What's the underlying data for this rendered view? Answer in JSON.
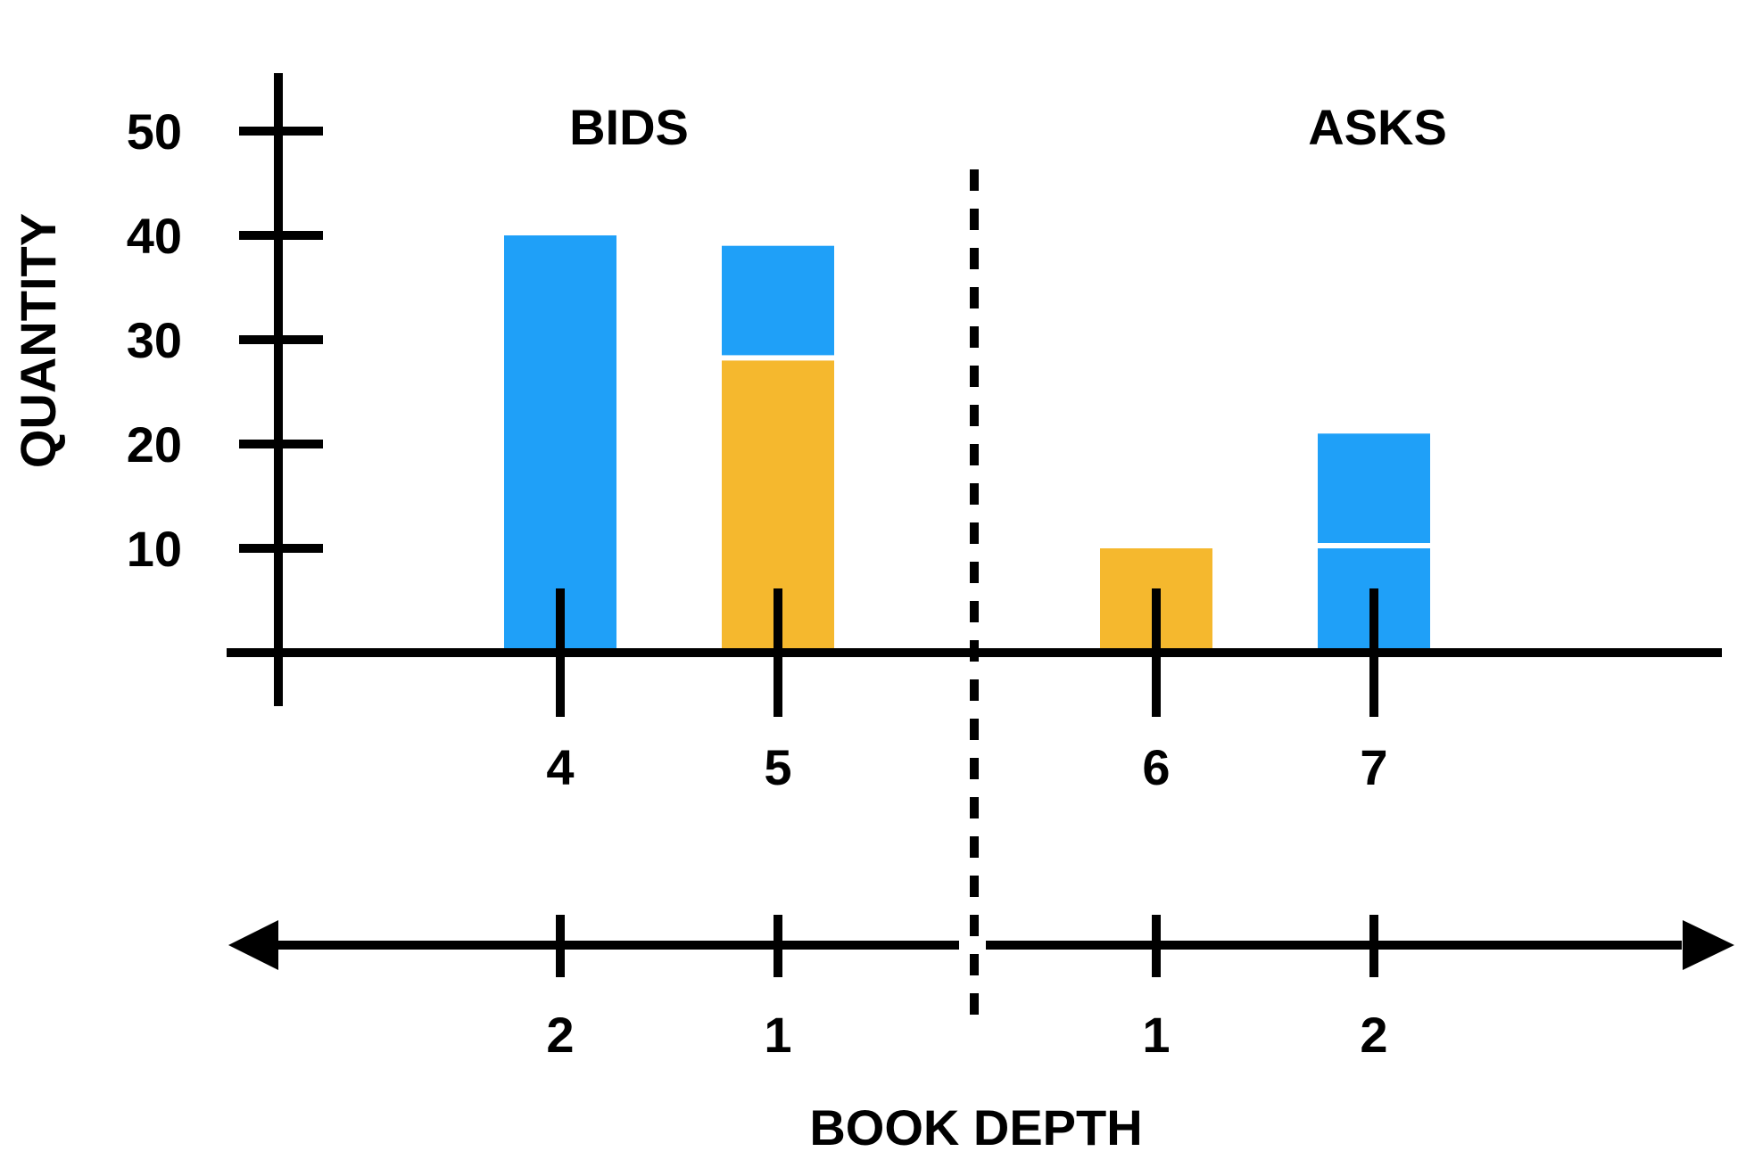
{
  "colors": {
    "blue": "#1fa0f8",
    "orange": "#f5b82e",
    "axis": "#000000"
  },
  "chart_data": {
    "type": "bar",
    "stacked": true,
    "ylabel": "QUANTITY",
    "xlabel": "BOOK DEPTH",
    "ylim": [
      0,
      50
    ],
    "yticks": [
      10,
      20,
      30,
      40,
      50
    ],
    "side_labels": {
      "left": "BIDS",
      "right": "ASKS"
    },
    "prices": [
      4,
      5,
      6,
      7
    ],
    "depths": [
      2,
      1,
      1,
      2
    ],
    "stacks": [
      {
        "price": 4,
        "segments": [
          {
            "value": 40,
            "color": "blue"
          }
        ]
      },
      {
        "price": 5,
        "segments": [
          {
            "value": 28,
            "color": "orange"
          },
          {
            "value": 11,
            "color": "blue"
          }
        ]
      },
      {
        "price": 6,
        "segments": [
          {
            "value": 10,
            "color": "orange"
          }
        ]
      },
      {
        "price": 7,
        "segments": [
          {
            "value": 10,
            "color": "blue"
          },
          {
            "value": 11,
            "color": "blue"
          }
        ]
      }
    ]
  }
}
